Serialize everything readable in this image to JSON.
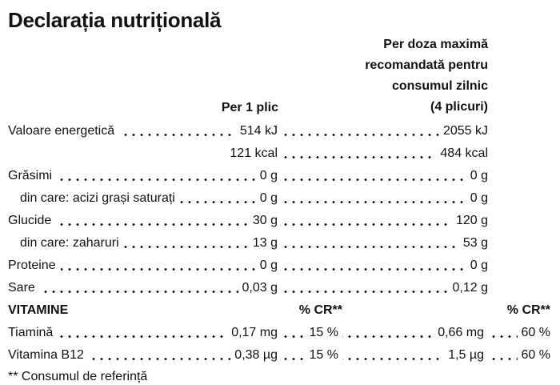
{
  "title": "Declarația nutrițională",
  "header": {
    "col1": "Per 1 plic",
    "col2_lines": [
      "Per doza maximă",
      "recomandată pentru",
      "consumul zilnic",
      "(4 plicuri)"
    ]
  },
  "rows": [
    {
      "label": "Valoare energetică",
      "v1": "514 kJ",
      "v2": "2055 kJ"
    },
    {
      "label": "",
      "v1": "121 kcal",
      "v2": "484 kcal"
    },
    {
      "label": "Grăsimi",
      "v1": "0 g",
      "v2": "0 g"
    },
    {
      "label": "din care: acizi grași saturați",
      "v1": "0 g",
      "v2": "0 g"
    },
    {
      "label": "Glucide",
      "v1": "30 g",
      "v2": "120 g"
    },
    {
      "label": "din care: zaharuri",
      "v1": "13 g",
      "v2": "53 g"
    },
    {
      "label": "Proteine",
      "v1": "0 g",
      "v2": "0 g"
    },
    {
      "label": "Sare",
      "v1": "0,03 g",
      "v2": "0,12 g"
    }
  ],
  "vitamins": {
    "section_label": "VITAMINE",
    "cr_header_1": "% CR**",
    "cr_header_2": "% CR**",
    "rows": [
      {
        "label": "Tiamină",
        "amount1": "0,17 mg",
        "pct1": "15 %",
        "amount2": "0,66 mg",
        "pct2": "60 %"
      },
      {
        "label": "Vitamina B12",
        "amount1": "0,38 µg",
        "pct1": "15 %",
        "amount2": "1,5 µg",
        "pct2": "60 %"
      }
    ]
  },
  "footnote": "** Consumul de referință",
  "colors": {
    "text": "#121212",
    "background": "#ffffff"
  }
}
